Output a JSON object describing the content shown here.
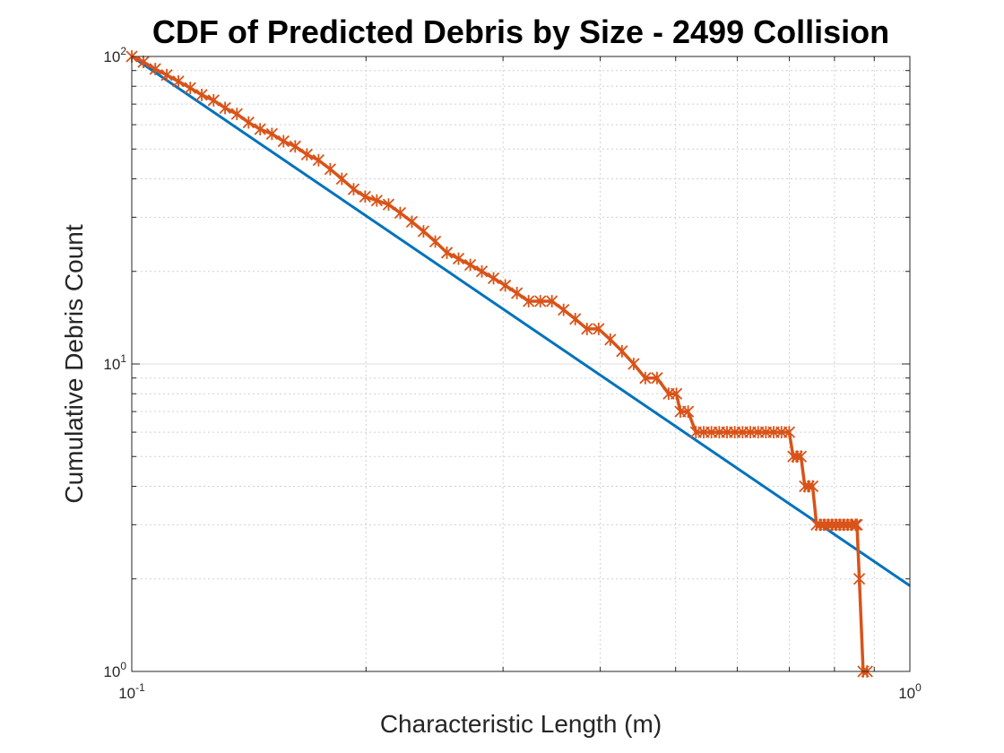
{
  "chart_data": {
    "type": "line",
    "title": "CDF of Predicted Debris by Size - 2499 Collision",
    "xlabel": "Characteristic Length (m)",
    "ylabel": "Cumulative Debris Count",
    "x_scale": "log",
    "y_scale": "log",
    "xlim": [
      0.1,
      1
    ],
    "ylim": [
      1,
      100
    ],
    "x_ticks": [
      {
        "base": "10",
        "exp": "-1",
        "value": 0.1
      },
      {
        "base": "10",
        "exp": "0",
        "value": 1
      }
    ],
    "y_ticks": [
      {
        "base": "10",
        "exp": "0",
        "value": 1
      },
      {
        "base": "10",
        "exp": "1",
        "value": 10
      },
      {
        "base": "10",
        "exp": "2",
        "value": 100
      }
    ],
    "grid": "major and minor (dotted minor)",
    "legend": "none",
    "series": [
      {
        "line_style": "solid line",
        "color": "#0072BD",
        "kind": "power-law fit",
        "x": [
          0.1,
          1
        ],
        "y": [
          100,
          1.9
        ]
      },
      {
        "line_style": "solid line with x-star markers",
        "color": "#D95319",
        "kind": "empirical cumulative count",
        "x": [
          0.1,
          0.1035,
          0.1072,
          0.1109,
          0.1148,
          0.1189,
          0.123,
          0.1274,
          0.1318,
          0.1365,
          0.1413,
          0.1462,
          0.1514,
          0.1567,
          0.1622,
          0.1679,
          0.1738,
          0.1799,
          0.1862,
          0.1928,
          0.1995,
          0.2065,
          0.2138,
          0.2213,
          0.2291,
          0.2371,
          0.2455,
          0.2541,
          0.263,
          0.2723,
          0.2818,
          0.2917,
          0.302,
          0.3126,
          0.3236,
          0.335,
          0.3467,
          0.3589,
          0.3715,
          0.3846,
          0.3981,
          0.4121,
          0.4266,
          0.4416,
          0.4571,
          0.4732,
          0.4898,
          0.5012,
          0.507,
          0.5188,
          0.5309,
          0.5433,
          0.5559,
          0.5689,
          0.5821,
          0.5957,
          0.6095,
          0.6237,
          0.6383,
          0.6531,
          0.6683,
          0.6839,
          0.6998,
          0.7079,
          0.7161,
          0.7244,
          0.7328,
          0.7413,
          0.7499,
          0.7586,
          0.7674,
          0.7762,
          0.7852,
          0.7943,
          0.8035,
          0.8128,
          0.8222,
          0.8318,
          0.8414,
          0.8511,
          0.8551,
          0.861,
          0.871,
          0.8811
        ],
        "y": [
          100,
          96,
          91,
          87,
          83,
          79,
          75,
          72,
          68,
          65,
          61,
          58,
          56,
          53,
          51,
          48,
          46,
          43,
          40,
          37,
          35,
          34,
          33,
          31,
          29,
          27,
          25,
          23,
          22,
          21,
          20,
          19,
          18,
          17,
          16,
          16,
          16,
          15,
          14,
          13,
          13,
          12,
          11,
          10,
          9,
          9,
          8,
          8,
          7,
          7,
          6,
          6,
          6,
          6,
          6,
          6,
          6,
          6,
          6,
          6,
          6,
          6,
          6,
          5,
          5,
          5,
          4,
          4,
          4,
          3,
          3,
          3,
          3,
          3,
          3,
          3,
          3,
          3,
          3,
          3,
          3,
          2,
          1,
          1
        ]
      }
    ]
  }
}
